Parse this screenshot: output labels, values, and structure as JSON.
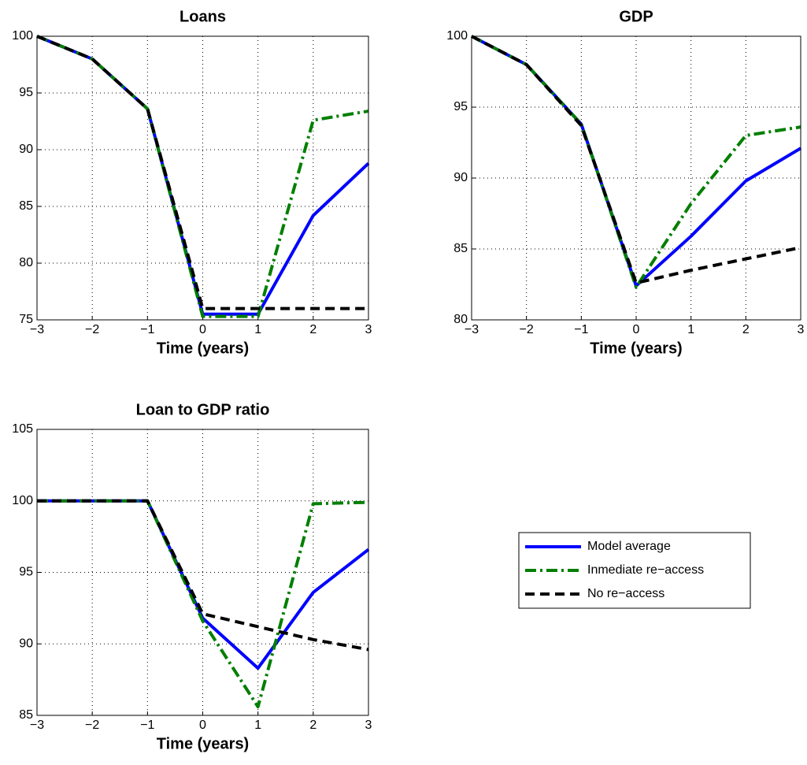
{
  "chart_data": [
    {
      "type": "line",
      "title": "Loans",
      "xlabel": "Time (years)",
      "x": [
        -3,
        -2,
        -1,
        0,
        1,
        2,
        3
      ],
      "series": [
        {
          "name": "Model average",
          "color": "#0000ff",
          "linestyle": "solid",
          "values": [
            100,
            98,
            93.6,
            75.5,
            75.5,
            84.2,
            88.8
          ]
        },
        {
          "name": "Inmediate re−access",
          "color": "#007f00",
          "linestyle": "dashdot",
          "values": [
            100,
            98,
            93.6,
            75.3,
            75.3,
            92.6,
            93.4
          ]
        },
        {
          "name": "No re−access",
          "color": "#000000",
          "linestyle": "dashed",
          "values": [
            100,
            98,
            93.6,
            76,
            76,
            76,
            76
          ]
        }
      ],
      "xlim": [
        -3,
        3
      ],
      "xticks": [
        {
          "value": -3,
          "label": "−3"
        },
        {
          "value": -2,
          "label": "−2"
        },
        {
          "value": -1,
          "label": "−1"
        },
        0,
        1,
        2,
        3
      ],
      "ylim": [
        75,
        100
      ],
      "yticks": [
        75,
        80,
        85,
        90,
        95,
        100
      ],
      "grid": true
    },
    {
      "type": "line",
      "title": "GDP",
      "xlabel": "Time (years)",
      "x": [
        -3,
        -2,
        -1,
        0,
        1,
        2,
        3
      ],
      "series": [
        {
          "name": "Model average",
          "color": "#0000ff",
          "linestyle": "solid",
          "values": [
            100,
            98,
            93.8,
            82.4,
            85.9,
            89.8,
            92.1
          ]
        },
        {
          "name": "Inmediate re−access",
          "color": "#007f00",
          "linestyle": "dashdot",
          "values": [
            100,
            98,
            93.8,
            82.3,
            88.2,
            93,
            93.6
          ]
        },
        {
          "name": "No re−access",
          "color": "#000000",
          "linestyle": "dashed",
          "values": [
            100,
            98,
            93.7,
            82.6,
            83.5,
            84.3,
            85.1
          ]
        }
      ],
      "xlim": [
        -3,
        3
      ],
      "xticks": [
        {
          "value": -3,
          "label": "−3"
        },
        {
          "value": -2,
          "label": "−2"
        },
        {
          "value": -1,
          "label": "−1"
        },
        0,
        1,
        2,
        3
      ],
      "ylim": [
        80,
        100
      ],
      "yticks": [
        80,
        85,
        90,
        95,
        100
      ],
      "grid": true
    },
    {
      "type": "line",
      "title": "Loan to GDP ratio",
      "xlabel": "Time (years)",
      "x": [
        -3,
        -2,
        -1,
        0,
        1,
        2,
        3
      ],
      "series": [
        {
          "name": "Model average",
          "color": "#0000ff",
          "linestyle": "solid",
          "values": [
            100,
            100,
            100,
            91.8,
            88.3,
            93.6,
            96.6
          ]
        },
        {
          "name": "Inmediate re−access",
          "color": "#007f00",
          "linestyle": "dashdot",
          "values": [
            100,
            100,
            100,
            91.6,
            85.6,
            99.8,
            99.9
          ]
        },
        {
          "name": "No re−access",
          "color": "#000000",
          "linestyle": "dashed",
          "values": [
            100,
            100,
            100,
            92.1,
            91.2,
            90.3,
            89.6
          ]
        }
      ],
      "xlim": [
        -3,
        3
      ],
      "xticks": [
        {
          "value": -3,
          "label": "−3"
        },
        {
          "value": -2,
          "label": "−2"
        },
        {
          "value": -1,
          "label": "−1"
        },
        0,
        1,
        2,
        3
      ],
      "ylim": [
        85,
        105
      ],
      "yticks": [
        85,
        90,
        95,
        100,
        105
      ],
      "grid": true
    }
  ]
}
